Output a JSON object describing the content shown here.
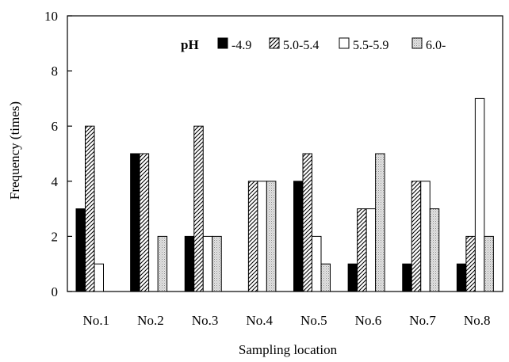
{
  "chart_data": {
    "type": "bar",
    "title": "",
    "xlabel": "Sampling location",
    "ylabel": "Frequency (times)",
    "ylim": [
      0,
      10
    ],
    "yticks": [
      0,
      2,
      4,
      6,
      8,
      10
    ],
    "grid": false,
    "legend_title": "pH",
    "legend_position": "top-right",
    "categories": [
      "No.1",
      "No.2",
      "No.3",
      "No.4",
      "No.5",
      "No.6",
      "No.7",
      "No.8"
    ],
    "series": [
      {
        "name": "-4.9",
        "pattern": "solid-black",
        "values": [
          3,
          5,
          2,
          0,
          4,
          1,
          1,
          1
        ]
      },
      {
        "name": "5.0-5.4",
        "pattern": "diagonal-hatch",
        "values": [
          6,
          5,
          6,
          4,
          5,
          3,
          4,
          2
        ]
      },
      {
        "name": "5.5-5.9",
        "pattern": "white",
        "values": [
          1,
          0,
          2,
          4,
          2,
          3,
          4,
          7
        ]
      },
      {
        "name": "6.0-",
        "pattern": "dotted-gray",
        "values": [
          0,
          2,
          2,
          4,
          1,
          5,
          3,
          2
        ]
      }
    ]
  }
}
